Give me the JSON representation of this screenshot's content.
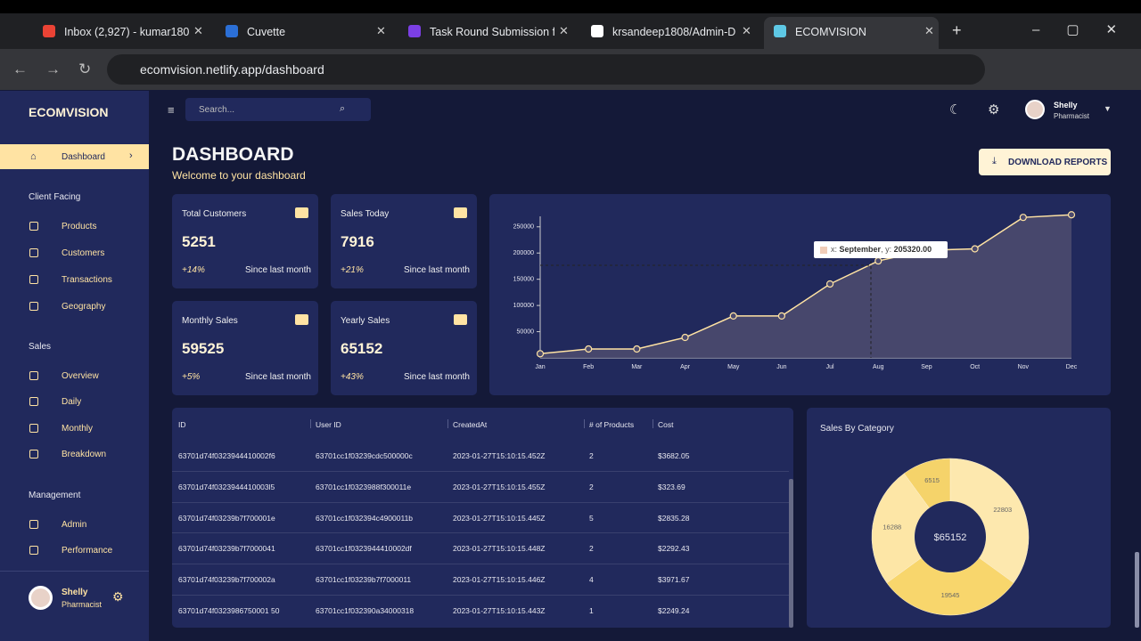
{
  "browser": {
    "tabs": [
      "Inbox (2,927) - kumar180",
      "Cuvette",
      "Task Round Submission f",
      "krsandeep1808/Admin-D",
      "ECOMVISION"
    ],
    "url": "ecomvision.netlify.app/dashboard"
  },
  "sidebar": {
    "brand": "ECOMVISION",
    "dashboard": "Dashboard",
    "sections": [
      {
        "heading": "Client Facing",
        "items": [
          "Products",
          "Customers",
          "Transactions",
          "Geography"
        ]
      },
      {
        "heading": "Sales",
        "items": [
          "Overview",
          "Daily",
          "Monthly",
          "Breakdown"
        ]
      },
      {
        "heading": "Management",
        "items": [
          "Admin",
          "Performance"
        ]
      }
    ]
  },
  "user": {
    "name": "Shelly",
    "role": "Pharmacist"
  },
  "topbar": {
    "search": "Search..."
  },
  "header": {
    "title": "DASHBOARD",
    "subtitle": "Welcome to your dashboard",
    "button": "DOWNLOAD REPORTS"
  },
  "stats": [
    {
      "title": "Total Customers",
      "value": 5251,
      "change": "+14%",
      "since": "Since last month"
    },
    {
      "title": "Sales Today",
      "value": 7916,
      "change": "+21%",
      "since": "Since last month"
    },
    {
      "title": "Monthly Sales",
      "value": 59525,
      "change": "+5%",
      "since": "Since last month"
    },
    {
      "title": "Yearly Sales",
      "value": 65152,
      "change": "+43%",
      "since": "Since last month"
    }
  ],
  "sales_chart": {
    "type": "line",
    "x": [
      "Jan",
      "Feb",
      "Mar",
      "Apr",
      "May",
      "Jun",
      "Jul",
      "Aug",
      "Sep",
      "Oct",
      "Nov",
      "Dec"
    ],
    "values": [
      8000,
      17000,
      17000,
      39000,
      80000,
      80000,
      141000,
      185000,
      205320,
      208000,
      268000,
      273000
    ],
    "ylim": [
      0,
      270000
    ],
    "yticks": [
      50000,
      100000,
      150000,
      200000,
      250000
    ],
    "color": "#ffe3a3",
    "tooltip": [
      "x:",
      "September",
      ", y:",
      "205320.00"
    ]
  },
  "table": {
    "columns": [
      "ID",
      "User ID",
      "CreatedAt",
      "# of Products",
      "Cost"
    ],
    "rows": [
      [
        "63701d74f0323944410002f6",
        "63701cc1f03239cdc500000c",
        "2023-01-27T15:10:15.452Z",
        2,
        "$3682.05"
      ],
      [
        "63701d74f0323944410003l5",
        "63701cc1f0323988f300011e",
        "2023-01-27T15:10:15.455Z",
        2,
        "$323.69"
      ],
      [
        "63701d74f03239b7f700001e",
        "63701cc1f032394c4900011b",
        "2023-01-27T15:10:15.445Z",
        5,
        "$2835.28"
      ],
      [
        "63701d74f03239b7f7000041",
        "63701cc1f0323944410002df",
        "2023-01-27T15:10:15.448Z",
        2,
        "$2292.43"
      ],
      [
        "63701d74f03239b7f700002a",
        "63701cc1f03239b7f7000011",
        "2023-01-27T15:10:15.446Z",
        4,
        "$3971.67"
      ],
      [
        "63701d74f0323986750001 50",
        "63701cc1f032390a34000318",
        "2023-01-27T15:10:15.443Z",
        1,
        "$2249.24"
      ]
    ]
  },
  "category_chart": {
    "type": "pie",
    "title": "Sales By Category",
    "total": "$65152",
    "values": [
      22803,
      19545,
      16288,
      6515
    ],
    "colors": [
      "#fde8ae",
      "#f8d66c",
      "#fde6a6",
      "#f5d36a"
    ]
  }
}
